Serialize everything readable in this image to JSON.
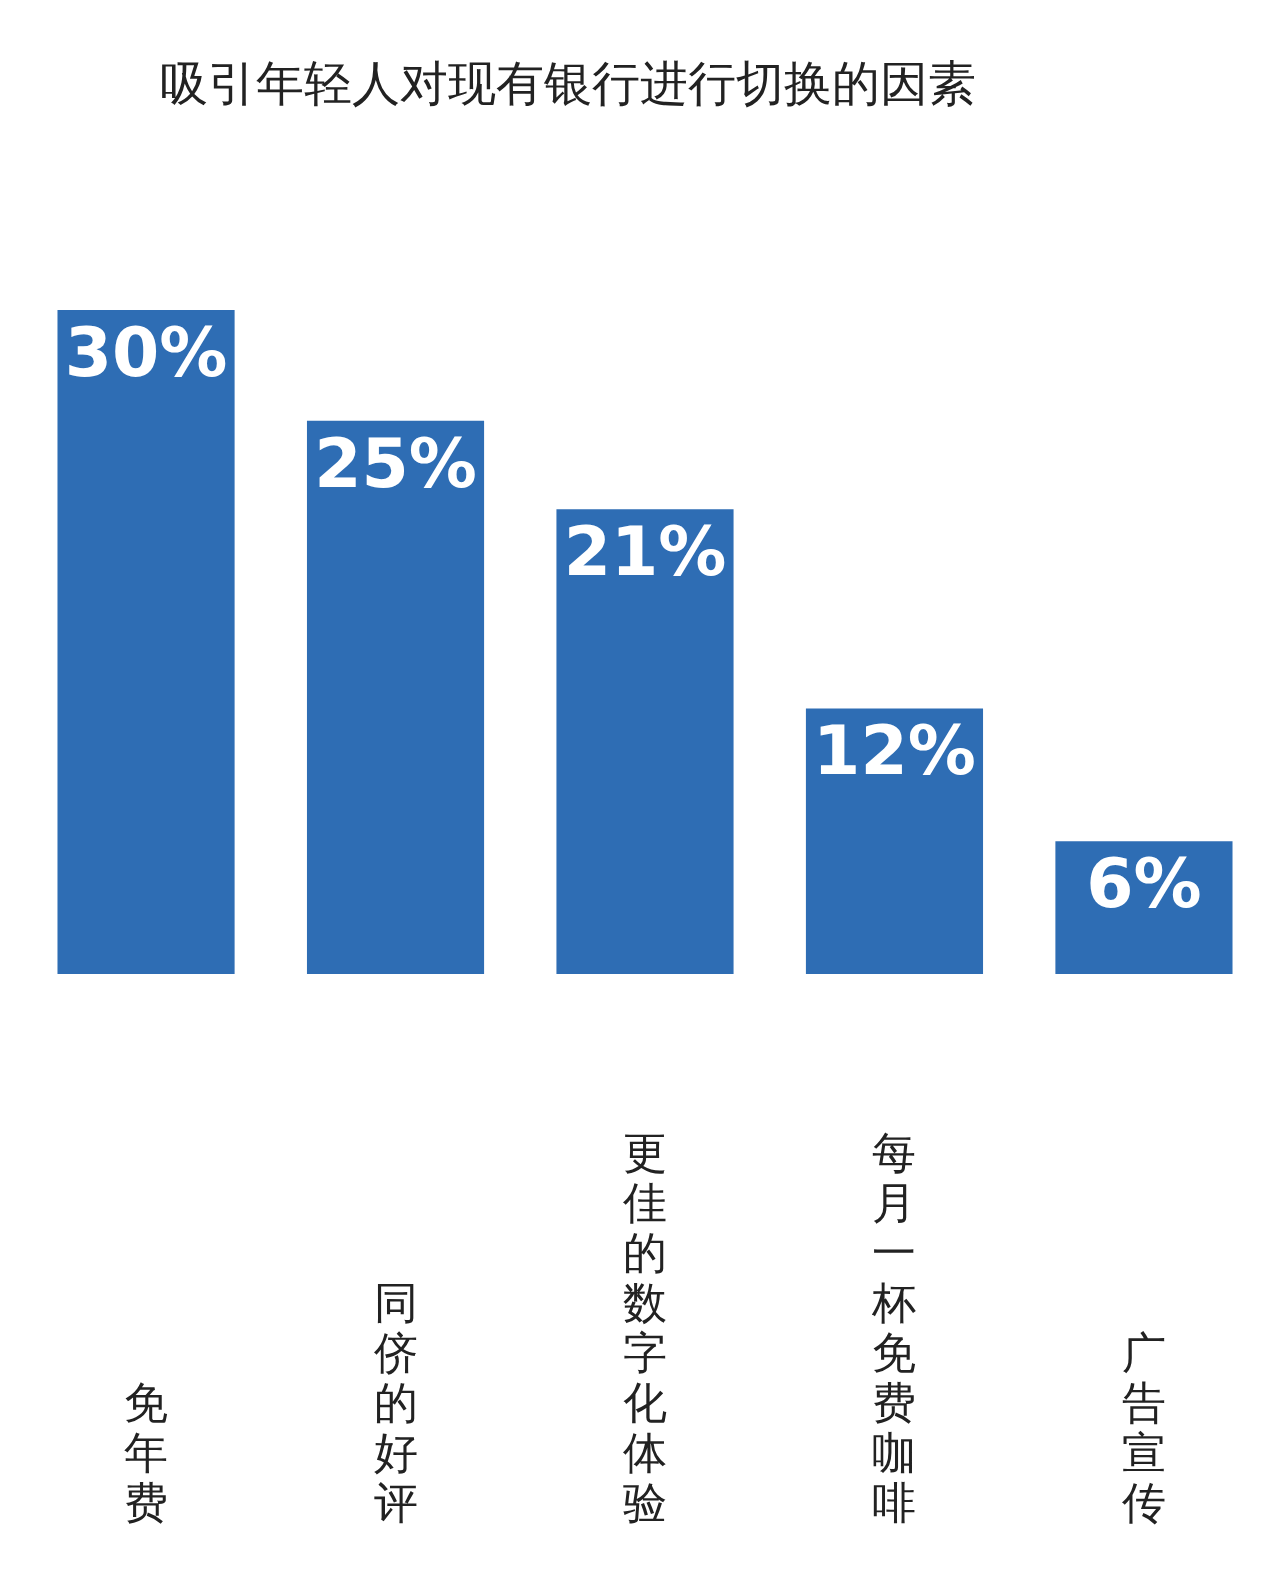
{
  "chart_data": {
    "type": "bar",
    "title": "吸引年轻人对现有银行进行切换的因素",
    "categories": [
      "免年费",
      "同侪的好评",
      "更佳的数字化体验",
      "每月一杯免费咖啡",
      "广告宣传"
    ],
    "values": [
      30,
      25,
      21,
      12,
      6
    ],
    "value_labels": [
      "30%",
      "25%",
      "21%",
      "12%",
      "6%"
    ],
    "color": "#2e6db4"
  }
}
